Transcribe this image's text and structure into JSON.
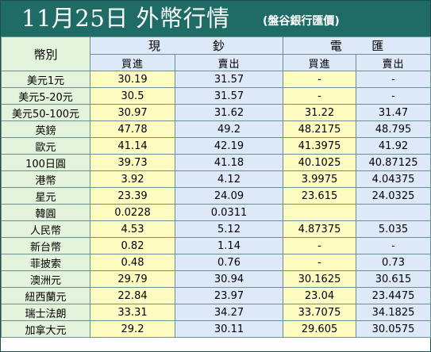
{
  "header": {
    "title": "11月25日 外幣行情",
    "source": "(盤谷銀行匯價)"
  },
  "table": {
    "corner_label": "幣別",
    "group_cash": [
      "現",
      "鈔"
    ],
    "group_wire": [
      "電",
      "匯"
    ],
    "buy_label": "買進",
    "sell_label": "賣出",
    "rows": [
      {
        "name": "美元1元",
        "cash_buy": "30.19",
        "cash_sell": "31.57",
        "wire_buy": "-",
        "wire_sell": "-"
      },
      {
        "name": "美元5-20元",
        "cash_buy": "30.5",
        "cash_sell": "31.57",
        "wire_buy": "-",
        "wire_sell": "-"
      },
      {
        "name": "美元50-100元",
        "cash_buy": "30.97",
        "cash_sell": "31.62",
        "wire_buy": "31.22",
        "wire_sell": "31.47"
      },
      {
        "name": "英鎊",
        "cash_buy": "47.78",
        "cash_sell": "49.2",
        "wire_buy": "48.2175",
        "wire_sell": "48.795"
      },
      {
        "name": "歐元",
        "cash_buy": "41.14",
        "cash_sell": "42.19",
        "wire_buy": "41.3975",
        "wire_sell": "41.92"
      },
      {
        "name": "100日圓",
        "cash_buy": "39.73",
        "cash_sell": "41.18",
        "wire_buy": "40.1025",
        "wire_sell": "40.87125"
      },
      {
        "name": "港幣",
        "cash_buy": "3.92",
        "cash_sell": "4.12",
        "wire_buy": "3.9975",
        "wire_sell": "4.04375"
      },
      {
        "name": "星元",
        "cash_buy": "23.39",
        "cash_sell": "24.09",
        "wire_buy": "23.615",
        "wire_sell": "24.0325"
      },
      {
        "name": "韓圓",
        "cash_buy": "0.0228",
        "cash_sell": "0.0311",
        "wire_buy": "",
        "wire_sell": ""
      },
      {
        "name": "人民幣",
        "cash_buy": "4.53",
        "cash_sell": "5.12",
        "wire_buy": "4.87375",
        "wire_sell": "5.035"
      },
      {
        "name": "新台幣",
        "cash_buy": "0.82",
        "cash_sell": "1.14",
        "wire_buy": "-",
        "wire_sell": "-"
      },
      {
        "name": "菲披索",
        "cash_buy": "0.48",
        "cash_sell": "0.76",
        "wire_buy": "-",
        "wire_sell": "0.73"
      },
      {
        "name": "澳洲元",
        "cash_buy": "29.79",
        "cash_sell": "30.94",
        "wire_buy": "30.1625",
        "wire_sell": "30.615"
      },
      {
        "name": "紐西蘭元",
        "cash_buy": "22.84",
        "cash_sell": "23.97",
        "wire_buy": "23.04",
        "wire_sell": "23.4475"
      },
      {
        "name": "瑞士法朗",
        "cash_buy": "33.31",
        "cash_sell": "34.27",
        "wire_buy": "33.7075",
        "wire_sell": "34.1825"
      },
      {
        "name": "加拿大元",
        "cash_buy": "29.2",
        "cash_sell": "30.11",
        "wire_buy": "29.605",
        "wire_sell": "30.0575"
      }
    ]
  },
  "colors": {
    "title_bg": "#1f6b66",
    "category_bg": "#e4f4dc",
    "buy_bg": "#fffcc2",
    "sell_bg": "#dde9f8"
  }
}
